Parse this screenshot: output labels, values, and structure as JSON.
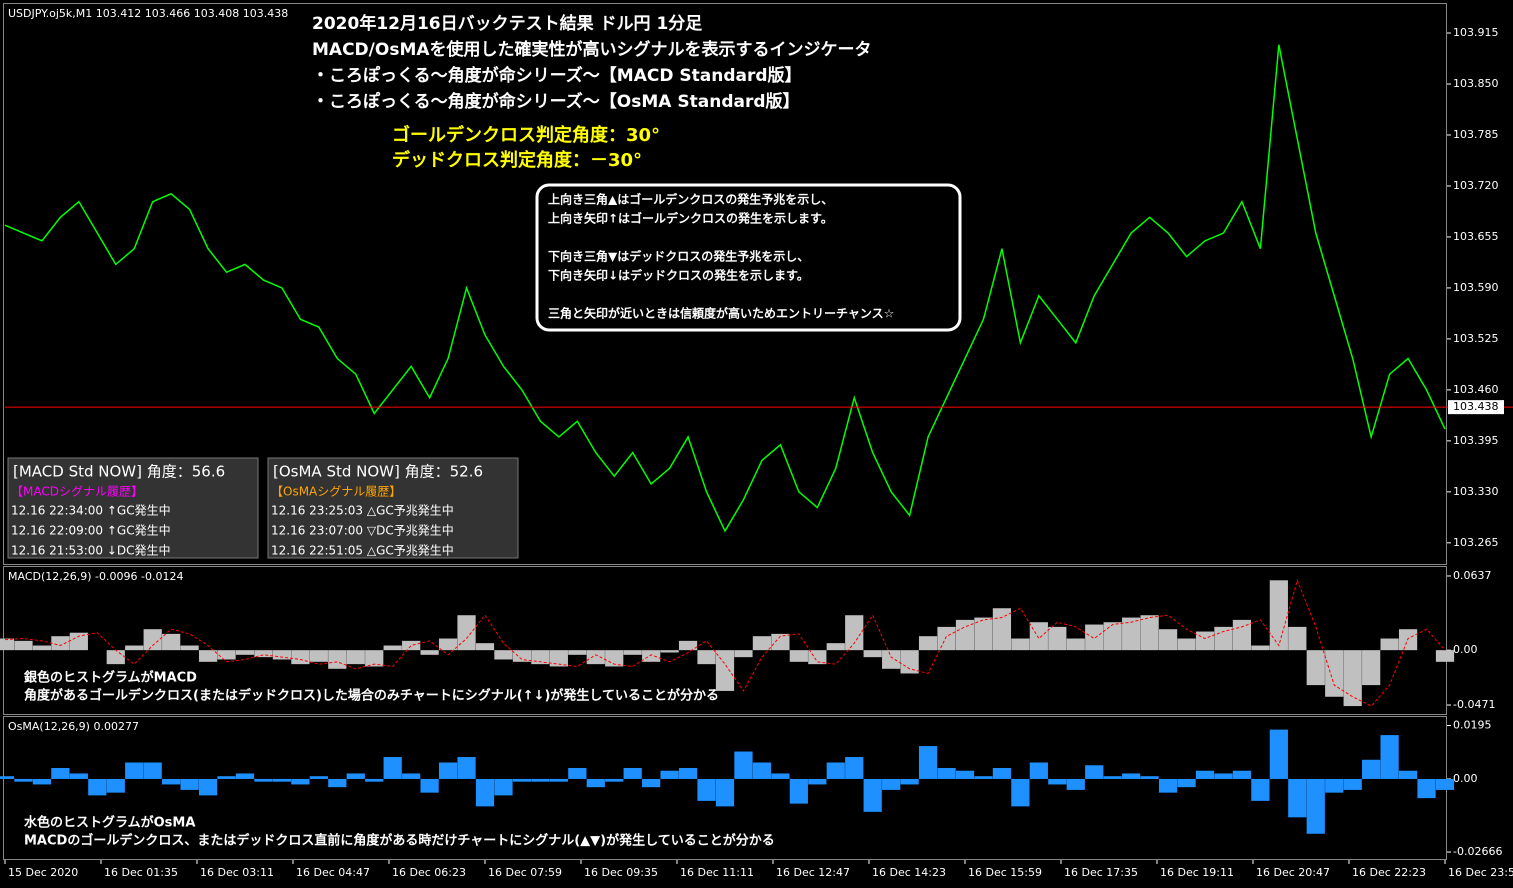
{
  "chart_data": [
    {
      "type": "line",
      "title": "USDJPY.oj5k,M1  103.412 103.466 103.408 103.438",
      "headline": [
        "2020年12月16日バックテスト結果 ドル円 1分足",
        "MACD/OsMAを使用した確実性が高いシグナルを表示するインジケータ",
        "・ころぽっくる～角度が命シリーズ～【MACD Standard版】",
        "・ころぽっくる～角度が命シリーズ～【OsMA Standard版】"
      ],
      "thresholds": [
        "ゴールデンクロス判定角度：30°",
        "デッドクロス判定角度：－30°"
      ],
      "note": [
        "上向き三角▲はゴールデンクロスの発生予兆を示し、",
        "上向き矢印↑はゴールデンクロスの発生を示します。",
        "下向き三角▼はデッドクロスの発生予兆を示し、",
        "下向き矢印↓はデッドクロスの発生を示します。",
        "三角と矢印が近いときは信頼度が高いためエントリーチャンス☆"
      ],
      "panels": [
        {
          "title": "[MACD Std NOW] 角度：56.6",
          "subtitle": "【MACDシグナル履歴】",
          "subtitle_color": "#ff00ff",
          "rows": [
            "12.16 22:34:00 ↑GC発生中",
            "12.16 22:09:00 ↑GC発生中",
            "12.16 21:53:00 ↓DC発生中"
          ]
        },
        {
          "title": "[OsMA Std NOW] 角度：52.6",
          "subtitle": "【OsMAシグナル履歴】",
          "subtitle_color": "#ffa500",
          "rows": [
            "12.16 23:25:03 △GC予兆発生中",
            "12.16 23:07:00 ▽DC予兆発生中",
            "12.16 22:51:05 △GC予兆発生中"
          ]
        }
      ],
      "values": [
        103.67,
        103.66,
        103.65,
        103.68,
        103.7,
        103.66,
        103.62,
        103.64,
        103.7,
        103.71,
        103.69,
        103.64,
        103.61,
        103.62,
        103.6,
        103.59,
        103.55,
        103.54,
        103.5,
        103.48,
        103.43,
        103.46,
        103.49,
        103.45,
        103.5,
        103.59,
        103.53,
        103.49,
        103.46,
        103.42,
        103.4,
        103.42,
        103.38,
        103.35,
        103.38,
        103.34,
        103.36,
        103.4,
        103.33,
        103.28,
        103.32,
        103.37,
        103.39,
        103.33,
        103.31,
        103.36,
        103.45,
        103.38,
        103.33,
        103.3,
        103.4,
        103.45,
        103.5,
        103.55,
        103.64,
        103.52,
        103.58,
        103.55,
        103.52,
        103.58,
        103.62,
        103.66,
        103.68,
        103.66,
        103.63,
        103.65,
        103.66,
        103.7,
        103.64,
        103.9,
        103.78,
        103.66,
        103.58,
        103.5,
        103.4,
        103.48,
        103.5,
        103.46,
        103.41
      ],
      "color": "#00ff00",
      "ylim": [
        103.238,
        103.952
      ],
      "yticks": [
        103.915,
        {
          "value": 103.85,
          "label": "103.850"
        },
        103.785,
        {
          "value": 103.72,
          "label": "103.720"
        },
        103.655,
        {
          "value": 103.59,
          "label": "103.590"
        },
        103.525,
        {
          "value": 103.46,
          "label": "103.460"
        },
        103.395,
        {
          "value": 103.33,
          "label": "103.330"
        },
        103.265
      ],
      "current_price": 103.438,
      "current_color": "#ff0000"
    },
    {
      "type": "bar",
      "title": "MACD(12,26,9) -0.0096 -0.0124",
      "annotations": [
        "銀色のヒストグラムがMACD",
        "角度があるゴールデンクロス(またはデッドクロス)した場合のみチャートにシグナル(↑↓)が発生していることが分かる"
      ],
      "series": [
        {
          "style": "bar",
          "color": "#c0c0c0",
          "values": [
            0.01,
            0.008,
            0.004,
            0.012,
            0.015,
            0,
            -0.012,
            0.004,
            0.018,
            0.014,
            0.004,
            -0.01,
            -0.008,
            -0.004,
            -0.006,
            -0.008,
            -0.012,
            -0.01,
            -0.016,
            -0.012,
            -0.014,
            0.004,
            0.008,
            -0.004,
            0.01,
            0.03,
            0.006,
            -0.008,
            -0.01,
            -0.012,
            -0.014,
            -0.004,
            -0.012,
            -0.014,
            -0.004,
            -0.01,
            -0.002,
            0.008,
            -0.012,
            -0.035,
            -0.006,
            0.012,
            0.014,
            -0.01,
            -0.012,
            0.006,
            0.03,
            -0.006,
            -0.016,
            -0.02,
            0.012,
            0.02,
            0.026,
            0.028,
            0.036,
            0.01,
            0.024,
            0.02,
            0.01,
            0.022,
            0.024,
            0.028,
            0.03,
            0.018,
            0.01,
            0.016,
            0.02,
            0.026,
            0.004,
            0.06,
            0.02,
            -0.03,
            -0.04,
            -0.048,
            -0.03,
            0.01,
            0.018,
            0,
            -0.01
          ]
        },
        {
          "style": "dashed-line",
          "color": "#ff0000",
          "values": [
            0.009,
            0.01,
            0.008,
            0.004,
            0.012,
            0.015,
            0,
            -0.012,
            0.004,
            0.018,
            0.014,
            0.004,
            -0.01,
            -0.008,
            -0.004,
            -0.006,
            -0.008,
            -0.012,
            -0.01,
            -0.016,
            -0.012,
            -0.014,
            0.004,
            0.008,
            -0.004,
            0.01,
            0.03,
            0.006,
            -0.008,
            -0.01,
            -0.012,
            -0.014,
            -0.004,
            -0.012,
            -0.014,
            -0.004,
            -0.01,
            -0.002,
            0.008,
            -0.012,
            -0.035,
            -0.006,
            0.012,
            0.014,
            -0.01,
            -0.012,
            0.006,
            0.03,
            -0.006,
            -0.016,
            -0.02,
            0.012,
            0.02,
            0.026,
            0.028,
            0.036,
            0.01,
            0.024,
            0.02,
            0.01,
            0.022,
            0.024,
            0.028,
            0.03,
            0.018,
            0.01,
            0.016,
            0.02,
            0.026,
            0.004,
            0.06,
            0.02,
            -0.03,
            -0.04,
            -0.048,
            -0.03,
            0.01,
            0.018,
            0
          ]
        }
      ],
      "ylim": [
        -0.0548,
        0.0714
      ],
      "yticks": [
        0.0637,
        {
          "value": 0,
          "label": "0.00"
        },
        -0.0471
      ]
    },
    {
      "type": "bar",
      "title": "OsMA(12,26,9) 0.00277",
      "annotations": [
        "水色のヒストグラムがOsMA",
        "MACDのゴールデンクロス、またはデッドクロス直前に角度がある時だけチャートにシグナル(▲▼)が発生していることが分かる"
      ],
      "series": [
        {
          "style": "bar",
          "color": "#1e90ff",
          "values": [
            0.001,
            -0.001,
            -0.002,
            0.004,
            0.002,
            -0.006,
            -0.005,
            0.006,
            0.006,
            -0.002,
            -0.004,
            -0.006,
            0.001,
            0.002,
            -0.001,
            -0.001,
            -0.002,
            0.001,
            -0.003,
            0.002,
            -0.001,
            0.008,
            0.002,
            -0.005,
            0.006,
            0.008,
            -0.01,
            -0.006,
            -0.001,
            -0.001,
            -0.001,
            0.004,
            -0.003,
            -0.001,
            0.004,
            -0.003,
            0.003,
            0.004,
            -0.008,
            -0.01,
            0.01,
            0.006,
            0.002,
            -0.009,
            -0.002,
            0.006,
            0.008,
            -0.012,
            -0.004,
            -0.002,
            0.012,
            0.004,
            0.003,
            0.001,
            0.004,
            -0.01,
            0.006,
            -0.002,
            -0.004,
            0.005,
            0.001,
            0.002,
            0.001,
            -0.005,
            -0.003,
            0.003,
            0.002,
            0.003,
            -0.008,
            0.018,
            -0.014,
            -0.02,
            -0.005,
            -0.004,
            0.007,
            0.016,
            0.003,
            -0.007,
            -0.004
          ]
        }
      ],
      "ylim": [
        -0.0292,
        0.0226
      ],
      "yticks": [
        0.0195,
        {
          "value": 0,
          "label": "0.00"
        },
        -0.02666
      ],
      "x_labels": [
        "15 Dec 2020",
        "16 Dec 01:35",
        "16 Dec 03:11",
        "16 Dec 04:47",
        "16 Dec 06:23",
        "16 Dec 07:59",
        "16 Dec 09:35",
        "16 Dec 11:11",
        "16 Dec 12:47",
        "16 Dec 14:23",
        "16 Dec 15:59",
        "16 Dec 17:35",
        "16 Dec 19:11",
        "16 Dec 20:47",
        "16 Dec 22:23",
        "16 Dec 23:5"
      ]
    }
  ]
}
